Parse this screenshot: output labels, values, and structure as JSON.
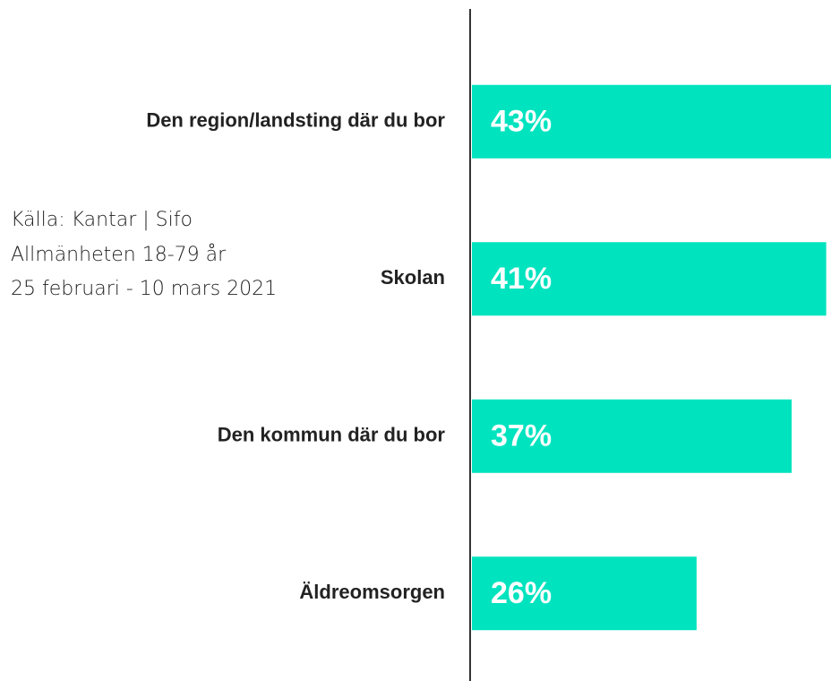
{
  "chart_data": {
    "type": "bar",
    "orientation": "horizontal",
    "categories": [
      "Den region/landsting där du bor",
      "Skolan",
      "Den kommun där du bor",
      "Äldreomsorgen"
    ],
    "values": [
      43,
      41,
      37,
      26
    ],
    "value_labels": [
      "43%",
      "41%",
      "37%",
      "26%"
    ],
    "color": "#00e3bf",
    "xlim": [
      0,
      50
    ],
    "source": [
      "Källa: Kantar | Sifo",
      "Allmänheten 18-79 år",
      "25 februari - 10 mars 2021"
    ]
  }
}
